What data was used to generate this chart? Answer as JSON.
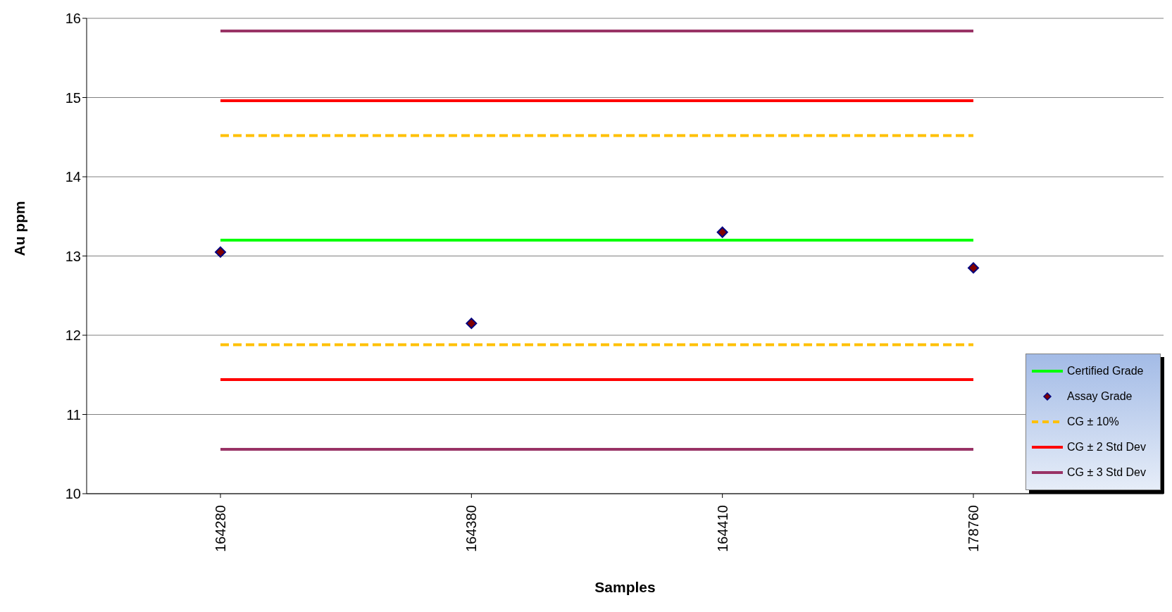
{
  "chart_data": {
    "type": "line",
    "xlabel": "Samples",
    "ylabel": "Au ppm",
    "categories": [
      "164280",
      "164380",
      "164410",
      "178760"
    ],
    "ylim": [
      10,
      16
    ],
    "yticks": [
      10,
      11,
      12,
      13,
      14,
      15,
      16
    ],
    "grid": "y",
    "legend": "bottom right",
    "series": [
      {
        "name": "Certified Grade",
        "color": "#00ff00",
        "line_style": "solid",
        "values": [
          13.2,
          13.2,
          13.2,
          13.2
        ]
      },
      {
        "name": "Assay Grade",
        "type": "scatter",
        "color": "#000080",
        "marker": "diamond",
        "values": [
          13.05,
          12.15,
          13.3,
          12.85
        ]
      },
      {
        "name": "CG ± 10%",
        "color": "#ffc000",
        "line_style": "dashed",
        "values": [
          14.52,
          14.52,
          14.52,
          14.52
        ]
      },
      {
        "color": "#ffc000",
        "line_style": "dashed",
        "values": [
          11.88,
          11.88,
          11.88,
          11.88
        ]
      },
      {
        "name": "CG ± 2 Std Dev",
        "color": "#ff0000",
        "line_style": "solid",
        "values": [
          14.96,
          14.96,
          14.96,
          14.96
        ]
      },
      {
        "color": "#ff0000",
        "line_style": "solid",
        "values": [
          11.44,
          11.44,
          11.44,
          11.44
        ]
      },
      {
        "name": "CG ± 3 Std Dev",
        "color": "#993366",
        "line_style": "solid",
        "values": [
          15.84,
          15.84,
          15.84,
          15.84
        ]
      },
      {
        "color": "#993366",
        "line_style": "solid",
        "values": [
          10.56,
          10.56,
          10.56,
          10.56
        ]
      }
    ]
  }
}
